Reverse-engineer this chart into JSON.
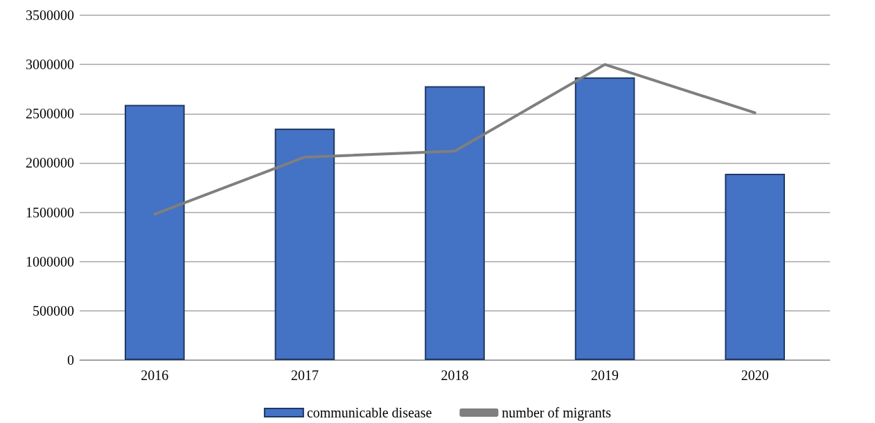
{
  "chart_data": {
    "type": "bar",
    "categories": [
      "2016",
      "2017",
      "2018",
      "2019",
      "2020"
    ],
    "series": [
      {
        "name": "communicable disease",
        "color": "#4472c4",
        "values": [
          2590000,
          2350000,
          2780000,
          2870000,
          1890000
        ]
      },
      {
        "name": "number of migrants",
        "type": "line",
        "color": "#7f7f7f",
        "values": [
          1480000,
          2060000,
          2120000,
          3000000,
          2510000
        ]
      }
    ],
    "ylim": [
      0,
      3500000
    ],
    "yticks": [
      0,
      500000,
      1000000,
      1500000,
      2000000,
      2500000,
      3000000,
      3500000
    ],
    "grid": "y",
    "legend": "bottom",
    "marker": "none"
  }
}
